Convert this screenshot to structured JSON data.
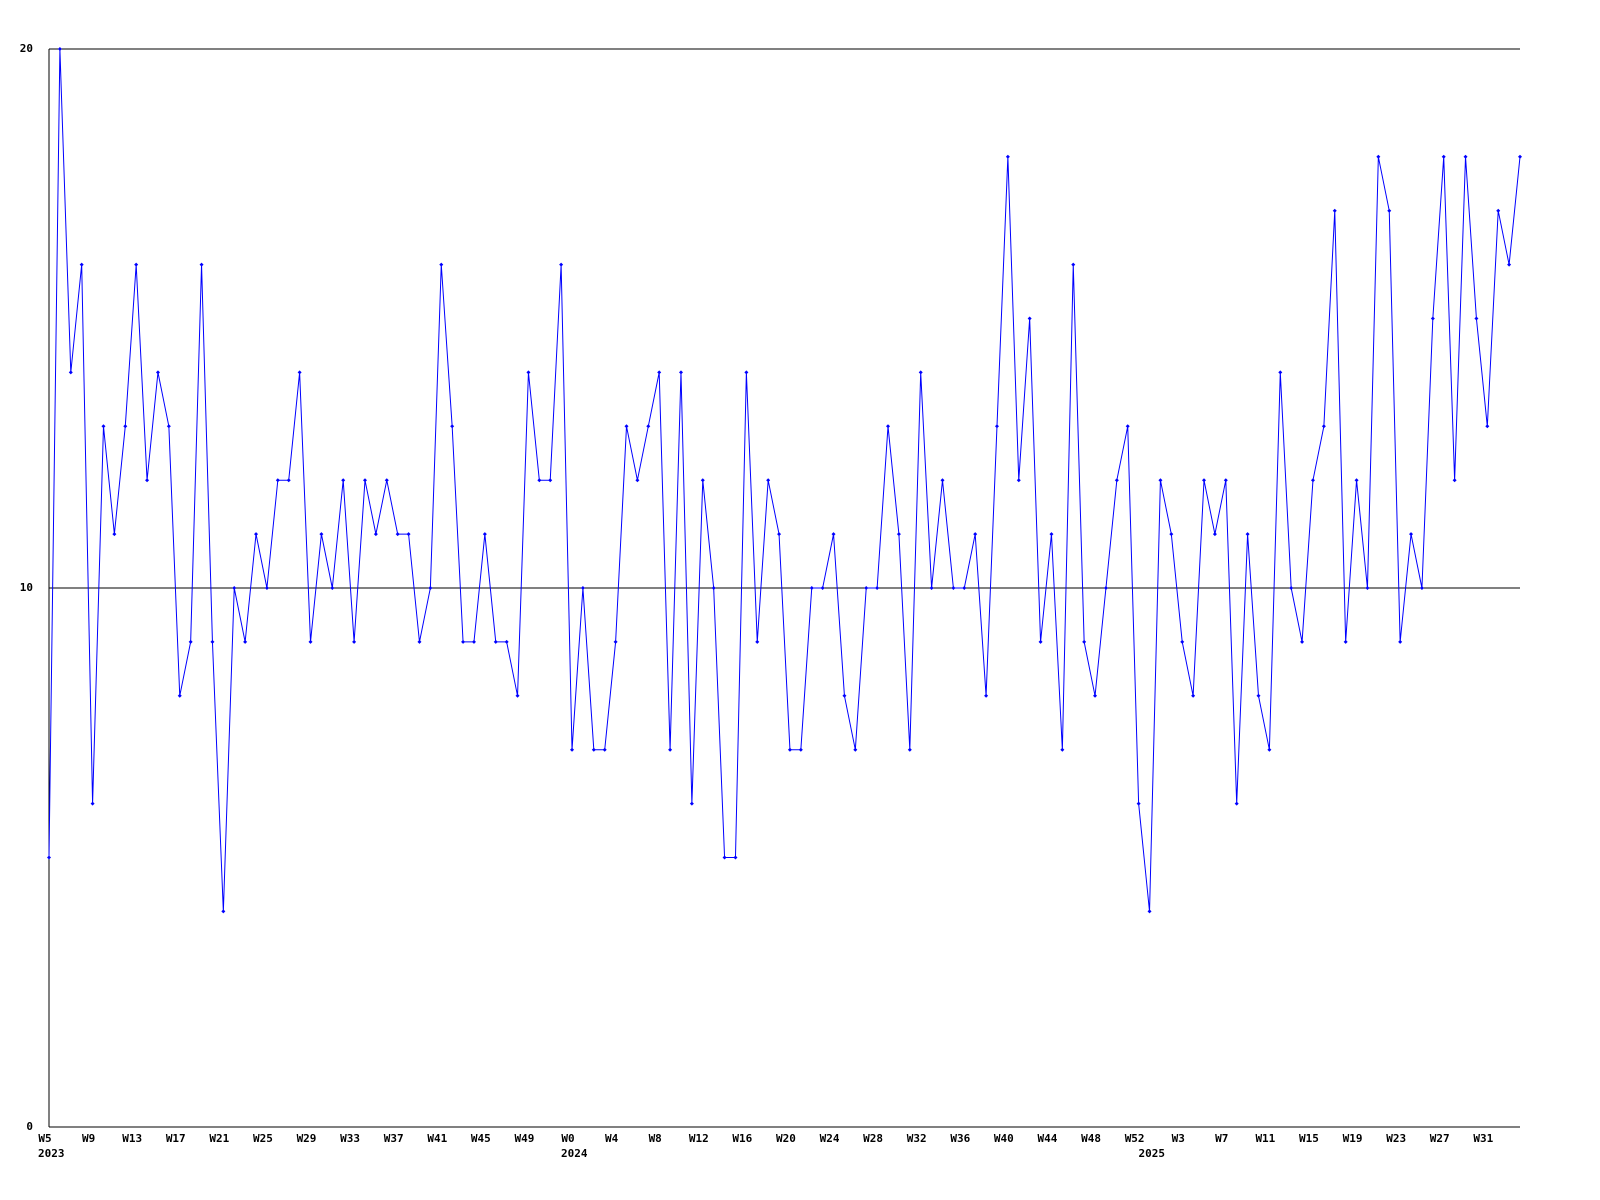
{
  "chart_data": {
    "type": "line",
    "categories": [
      "W5",
      null,
      null,
      null,
      "W9",
      null,
      null,
      null,
      "W13",
      null,
      null,
      null,
      "W17",
      null,
      null,
      null,
      "W21",
      null,
      null,
      null,
      "W25",
      null,
      null,
      null,
      "W29",
      null,
      null,
      null,
      "W33",
      null,
      null,
      null,
      "W37",
      null,
      null,
      null,
      "W41",
      null,
      null,
      null,
      "W45",
      null,
      null,
      null,
      "W49",
      null,
      null,
      null,
      "W0",
      null,
      null,
      null,
      "W4",
      null,
      null,
      null,
      "W8",
      null,
      null,
      null,
      "W12",
      null,
      null,
      null,
      "W16",
      null,
      null,
      null,
      "W20",
      null,
      null,
      null,
      "W24",
      null,
      null,
      null,
      "W28",
      null,
      null,
      null,
      "W32",
      null,
      null,
      null,
      "W36",
      null,
      null,
      null,
      "W40",
      null,
      null,
      null,
      "W44",
      null,
      null,
      null,
      "W48",
      null,
      null,
      null,
      "W52",
      null,
      null,
      null,
      "W3",
      null,
      null,
      null,
      "W7",
      null,
      null,
      null,
      "W11",
      null,
      null,
      null,
      "W15",
      null,
      null,
      null,
      "W19",
      null,
      null,
      null,
      "W23",
      null,
      null,
      null,
      "W27",
      null,
      null,
      null,
      "W31",
      null,
      null,
      null
    ],
    "year_labels": [
      "2023",
      null,
      null,
      null,
      null,
      null,
      null,
      null,
      null,
      null,
      null,
      null,
      null,
      null,
      null,
      null,
      null,
      null,
      null,
      null,
      null,
      null,
      null,
      null,
      null,
      null,
      null,
      null,
      null,
      null,
      null,
      null,
      null,
      null,
      null,
      null,
      null,
      null,
      null,
      null,
      null,
      null,
      null,
      null,
      null,
      null,
      null,
      null,
      "2024",
      null,
      null,
      null,
      null,
      null,
      null,
      null,
      null,
      null,
      null,
      null,
      null,
      null,
      null,
      null,
      null,
      null,
      null,
      null,
      null,
      null,
      null,
      null,
      null,
      null,
      null,
      null,
      null,
      null,
      null,
      null,
      null,
      null,
      null,
      null,
      null,
      null,
      null,
      null,
      null,
      null,
      null,
      null,
      null,
      null,
      null,
      null,
      null,
      null,
      null,
      null,
      null,
      "2025",
      null,
      null,
      null,
      null,
      null,
      null,
      null,
      null,
      null,
      null,
      null,
      null,
      null,
      null,
      null,
      null,
      null,
      null,
      null,
      null,
      null,
      null,
      null,
      null,
      null,
      null,
      null,
      null,
      null,
      null,
      null,
      null,
      null,
      null
    ],
    "values": [
      5,
      20,
      14,
      16,
      6,
      13,
      11,
      13,
      16,
      12,
      14,
      13,
      8,
      9,
      16,
      9,
      4,
      10,
      9,
      11,
      10,
      12,
      12,
      14,
      9,
      11,
      10,
      12,
      9,
      12,
      11,
      12,
      11,
      11,
      9,
      10,
      16,
      13,
      9,
      9,
      11,
      9,
      9,
      8,
      14,
      12,
      12,
      16,
      7,
      10,
      7,
      7,
      9,
      13,
      12,
      13,
      14,
      7,
      14,
      6,
      12,
      10,
      5,
      5,
      14,
      9,
      12,
      11,
      7,
      7,
      10,
      10,
      11,
      8,
      7,
      10,
      10,
      13,
      11,
      7,
      14,
      10,
      12,
      10,
      10,
      11,
      8,
      13,
      18,
      12,
      15,
      9,
      11,
      7,
      16,
      9,
      8,
      10,
      12,
      13,
      6,
      4,
      12,
      11,
      9,
      8,
      12,
      11,
      12,
      6,
      11,
      8,
      7,
      14,
      10,
      9,
      12,
      13,
      17,
      9,
      12,
      10,
      18,
      17,
      9,
      11,
      10,
      15,
      18,
      12,
      18,
      15,
      13,
      17,
      16,
      18
    ],
    "color": "#0000ff",
    "ylim": [
      0,
      20
    ],
    "yticks": [
      0,
      10,
      20
    ],
    "grid": true
  }
}
